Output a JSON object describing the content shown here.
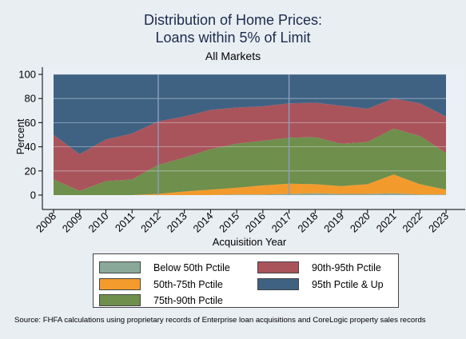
{
  "chart_data": {
    "type": "area",
    "stacked": true,
    "title": "Distribution of Home Prices:",
    "title_line2": "Loans within 5% of Limit",
    "subtitle": "All Markets",
    "xlabel": "Acquisition Year",
    "ylabel": "Percent",
    "ylim": [
      0,
      100
    ],
    "yticks": [
      0,
      20,
      40,
      60,
      80,
      100
    ],
    "x": [
      2008,
      2009,
      2010,
      2011,
      2012,
      2013,
      2014,
      2015,
      2016,
      2017,
      2018,
      2019,
      2020,
      2021,
      2022,
      2023
    ],
    "x_tick_labels": [
      "2008",
      "2009",
      "2010",
      "2011",
      "2012",
      "2013",
      "2014",
      "2015",
      "2016",
      "2017",
      "2018",
      "2019",
      "2020",
      "2021",
      "2022",
      "2023"
    ],
    "reference_lines_x": [
      2012,
      2017
    ],
    "grid": true,
    "legend_position": "bottom",
    "series": [
      {
        "name": "Below 50th Pctile",
        "color": "#8aa89a",
        "values": [
          0,
          0,
          0,
          0,
          0,
          0,
          0,
          0.5,
          0.5,
          1,
          1.5,
          1,
          1,
          1.5,
          0.5,
          0.5
        ]
      },
      {
        "name": "50th-75th Pctile",
        "color": "#f39a2c",
        "values": [
          0,
          0,
          0,
          0,
          1,
          3,
          4.5,
          5.5,
          7.5,
          8.5,
          7.5,
          6.5,
          8,
          15.5,
          8.5,
          4
        ]
      },
      {
        "name": "75th-90th Pctile",
        "color": "#6f8f4c",
        "values": [
          13,
          3.5,
          11.5,
          13,
          24,
          28,
          33.5,
          36.5,
          37,
          38,
          39,
          35,
          35,
          38,
          40,
          30.5
        ]
      },
      {
        "name": "90th-95th Pctile",
        "color": "#a9545b",
        "values": [
          37,
          30.5,
          34.5,
          38,
          36,
          34,
          32.5,
          30,
          28.5,
          28.5,
          28.5,
          31.5,
          27.5,
          25,
          27,
          30
        ]
      },
      {
        "name": "95th Pctile & Up",
        "color": "#3f6283",
        "values": [
          50,
          66,
          54,
          49,
          39,
          35,
          29.5,
          27.5,
          26.5,
          24,
          23.5,
          26,
          28.5,
          20,
          24,
          35
        ]
      }
    ]
  },
  "legend": {
    "items": [
      {
        "label": "Below 50th Pctile",
        "color": "#8aa89a"
      },
      {
        "label": "50th-75th Pctile",
        "color": "#f39a2c"
      },
      {
        "label": "75th-90th Pctile",
        "color": "#6f8f4c"
      },
      {
        "label": "90th-95th Pctile",
        "color": "#a9545b"
      },
      {
        "label": "95th Pctile & Up",
        "color": "#3f6283"
      }
    ]
  },
  "source": "Source: FHFA calculations using proprietary records of Enterprise loan acquisitions and CoreLogic property sales records"
}
